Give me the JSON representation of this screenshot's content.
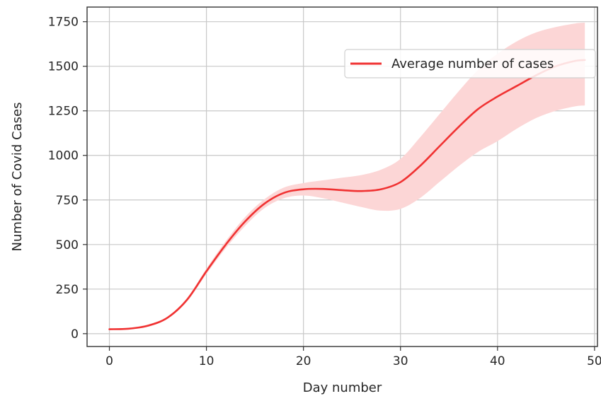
{
  "chart_data": {
    "type": "line",
    "title": "",
    "xlabel": "Day number",
    "ylabel": "Number of Covid Cases",
    "xlim": [
      -2.3,
      50.3
    ],
    "ylim": [
      -72,
      1832
    ],
    "xticks": [
      0,
      10,
      20,
      30,
      40,
      50
    ],
    "yticks": [
      0,
      250,
      500,
      750,
      1000,
      1250,
      1500,
      1750
    ],
    "grid": true,
    "legend_position": "upper-right",
    "series": [
      {
        "name": "Average number of cases",
        "color": "#f03232",
        "band_color": "#fcd6d6",
        "x": [
          0,
          2,
          4,
          6,
          8,
          10,
          12,
          14,
          16,
          18,
          20,
          22,
          24,
          26,
          28,
          30,
          32,
          34,
          36,
          38,
          40,
          42,
          44,
          46,
          48,
          49
        ],
        "y": [
          25,
          28,
          45,
          90,
          190,
          350,
          500,
          630,
          730,
          790,
          810,
          812,
          805,
          800,
          810,
          850,
          940,
          1050,
          1160,
          1260,
          1330,
          1390,
          1450,
          1500,
          1530,
          1535
        ],
        "lower": [
          22,
          24,
          40,
          85,
          180,
          335,
          480,
          605,
          705,
          760,
          775,
          760,
          735,
          710,
          690,
          700,
          760,
          850,
          940,
          1020,
          1080,
          1150,
          1210,
          1250,
          1275,
          1280
        ],
        "upper": [
          28,
          32,
          52,
          96,
          200,
          365,
          520,
          655,
          755,
          820,
          845,
          860,
          875,
          890,
          920,
          980,
          1100,
          1230,
          1360,
          1480,
          1570,
          1640,
          1690,
          1720,
          1740,
          1745
        ]
      }
    ]
  }
}
